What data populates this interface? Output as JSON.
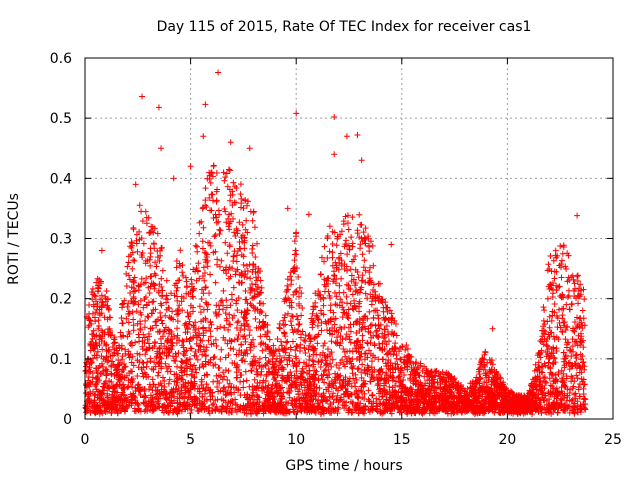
{
  "chart_data": {
    "type": "scatter",
    "title": "Day 115 of 2015, Rate Of TEC Index for receiver cas1",
    "xlabel": "GPS time / hours",
    "ylabel": "ROTI / TECUs",
    "xlim": [
      0,
      25
    ],
    "ylim": [
      0,
      0.6
    ],
    "xticks": [
      0,
      5,
      10,
      15,
      20,
      25
    ],
    "yticks": [
      0,
      0.1,
      0.2,
      0.3,
      0.4,
      0.5,
      0.6
    ],
    "xtick_labels": [
      "0",
      "5",
      "10",
      "15",
      "20",
      "25"
    ],
    "ytick_labels": [
      "0",
      "0.1",
      "0.2",
      "0.3",
      "0.4",
      "0.5",
      "0.6"
    ],
    "grid": true,
    "marker": "+",
    "color": "#ff0000",
    "envelope": {
      "description": "approximate upper envelope of ROTI values vs hour",
      "x": [
        0,
        0.5,
        1,
        1.5,
        2,
        2.5,
        3,
        3.5,
        4,
        4.5,
        5,
        5.5,
        6,
        6.5,
        7,
        7.5,
        8,
        8.5,
        9,
        9.5,
        10,
        10.5,
        11,
        11.5,
        12,
        12.5,
        13,
        13.5,
        14,
        14.5,
        15,
        15.5,
        16,
        16.5,
        17,
        17.5,
        18,
        18.5,
        19,
        19.5,
        20,
        20.5,
        21,
        21.5,
        22,
        22.5,
        23,
        23.5
      ],
      "y": [
        0.16,
        0.24,
        0.22,
        0.12,
        0.26,
        0.36,
        0.34,
        0.32,
        0.2,
        0.29,
        0.22,
        0.38,
        0.42,
        0.43,
        0.44,
        0.38,
        0.35,
        0.18,
        0.12,
        0.21,
        0.32,
        0.12,
        0.24,
        0.32,
        0.33,
        0.34,
        0.35,
        0.32,
        0.22,
        0.18,
        0.14,
        0.1,
        0.09,
        0.08,
        0.08,
        0.07,
        0.05,
        0.07,
        0.12,
        0.08,
        0.05,
        0.04,
        0.04,
        0.12,
        0.28,
        0.3,
        0.28,
        0.22
      ]
    },
    "outliers": [
      {
        "x": 2.7,
        "y": 0.536
      },
      {
        "x": 3.5,
        "y": 0.518
      },
      {
        "x": 3.6,
        "y": 0.45
      },
      {
        "x": 5.7,
        "y": 0.523
      },
      {
        "x": 6.3,
        "y": 0.576
      },
      {
        "x": 5.6,
        "y": 0.47
      },
      {
        "x": 10.0,
        "y": 0.508
      },
      {
        "x": 11.8,
        "y": 0.502
      },
      {
        "x": 12.4,
        "y": 0.47
      },
      {
        "x": 12.9,
        "y": 0.472
      },
      {
        "x": 11.8,
        "y": 0.44
      },
      {
        "x": 6.9,
        "y": 0.46
      },
      {
        "x": 5.0,
        "y": 0.42
      },
      {
        "x": 4.2,
        "y": 0.4
      },
      {
        "x": 7.8,
        "y": 0.45
      },
      {
        "x": 13.1,
        "y": 0.43
      },
      {
        "x": 2.4,
        "y": 0.39
      },
      {
        "x": 9.6,
        "y": 0.35
      },
      {
        "x": 23.3,
        "y": 0.338
      },
      {
        "x": 19.3,
        "y": 0.15
      },
      {
        "x": 10.6,
        "y": 0.34
      },
      {
        "x": 0.8,
        "y": 0.28
      },
      {
        "x": 14.5,
        "y": 0.29
      }
    ]
  }
}
